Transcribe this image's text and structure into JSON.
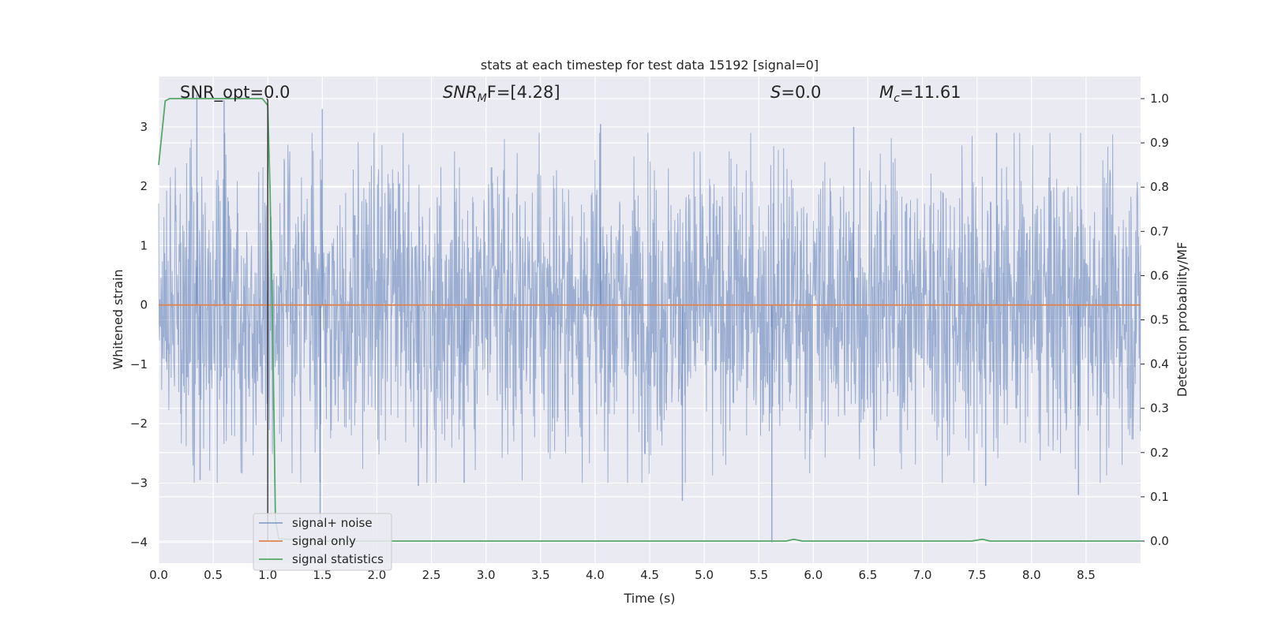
{
  "chart_data": {
    "type": "line",
    "title": "stats at each timestep for test data 15192 [signal=0]",
    "xlabel": "Time (s)",
    "ylabel_left": "Whitened strain",
    "ylabel_right": "Detection probability/MF",
    "xlim": [
      0.0,
      9.0
    ],
    "ylim_left": [
      -4.35,
      3.85
    ],
    "ylim_right": [
      -0.05,
      1.05
    ],
    "x_ticks": [
      "0.0",
      "0.5",
      "1.0",
      "1.5",
      "2.0",
      "2.5",
      "3.0",
      "3.5",
      "4.0",
      "4.5",
      "5.0",
      "5.5",
      "6.0",
      "6.5",
      "7.0",
      "7.5",
      "8.0",
      "8.5"
    ],
    "y_ticks_left": [
      "3",
      "2",
      "1",
      "0",
      "−1",
      "−2",
      "−3",
      "−4"
    ],
    "y_ticks_right": [
      "1.0",
      "0.9",
      "0.8",
      "0.7",
      "0.6",
      "0.5",
      "0.4",
      "0.3",
      "0.2",
      "0.1",
      "0.0"
    ],
    "grid": true,
    "legend_position": "lower-left",
    "annotations": {
      "snr_opt": "SNR_opt=0.0",
      "snr_mf_main": "SNR",
      "snr_mf_sub": "M",
      "snr_mf_rest": "F=[4.28]",
      "s_main": "S",
      "s_rest": "=0.0",
      "mc_main": "M",
      "mc_sub": "c",
      "mc_rest": "=11.61"
    },
    "series": [
      {
        "name": "signal+ noise",
        "color": "#4c72b0",
        "axis": "left",
        "description_values": "noise envelope, approx range -4 to 3.5, mean 0",
        "envelope_typical": [
          -1.8,
          2.0
        ],
        "spikes": [
          {
            "x": 0.35,
            "y": 3.55
          },
          {
            "x": 0.6,
            "y": 3.45
          },
          {
            "x": 1.0,
            "y": 2.4
          },
          {
            "x": 1.5,
            "y": 3.3
          },
          {
            "x": 1.48,
            "y": -3.65
          },
          {
            "x": 4.05,
            "y": 3.05
          },
          {
            "x": 4.8,
            "y": -3.3
          },
          {
            "x": 5.62,
            "y": -4.0
          },
          {
            "x": 6.37,
            "y": 3.0
          },
          {
            "x": 7.68,
            "y": 2.9
          },
          {
            "x": 7.58,
            "y": -3.05
          },
          {
            "x": 8.43,
            "y": -3.2
          },
          {
            "x": 0.38,
            "y": -2.95
          },
          {
            "x": 2.38,
            "y": -3.05
          },
          {
            "x": 2.8,
            "y": -3.0
          }
        ]
      },
      {
        "name": "signal only",
        "color": "#dd8452",
        "axis": "left",
        "x": [
          0.0,
          9.0
        ],
        "y": [
          0.0,
          0.0
        ]
      },
      {
        "name": "signal statistics",
        "color": "#55a868",
        "axis": "right",
        "x": [
          0.0,
          0.06,
          0.1,
          0.2,
          0.5,
          0.8,
          0.95,
          1.0,
          1.02,
          1.05,
          1.07,
          1.1,
          1.5,
          5.6,
          5.75,
          5.82,
          5.9,
          7.45,
          7.55,
          7.62,
          7.7,
          9.0
        ],
        "y": [
          0.85,
          0.995,
          1.0,
          1.0,
          1.0,
          1.0,
          1.0,
          0.985,
          0.8,
          0.4,
          0.05,
          0.005,
          0.0,
          0.0,
          0.0,
          0.004,
          0.0,
          0.0,
          0.004,
          0.0,
          0.0,
          0.0
        ]
      },
      {
        "name": "detection marker",
        "color": "#333333",
        "axis": "right",
        "x": [
          0.99,
          1.0,
          1.0
        ],
        "y": [
          1.0,
          0.997,
          0.0
        ]
      }
    ]
  }
}
